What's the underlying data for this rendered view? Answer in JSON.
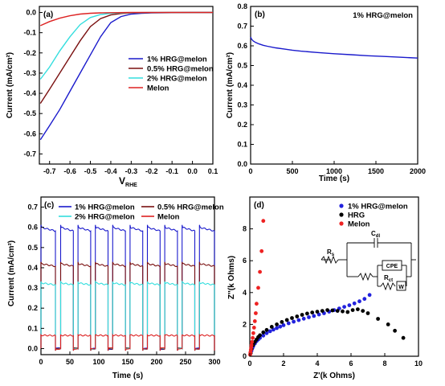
{
  "chart_data": [
    {
      "panel_label": "(a)",
      "type": "line",
      "xlabel": "V",
      "xlabel_sub": "RHE",
      "ylabel": "Current (mA/cm²)",
      "xlim": [
        -0.75,
        0.1
      ],
      "ylim": [
        -0.75,
        0.03
      ],
      "xticks": [
        "-0.7",
        "-0.6",
        "-0.5",
        "-0.4",
        "-0.3",
        "-0.2",
        "-0.1",
        "0.0",
        "0.1"
      ],
      "yticks": [
        "0.0",
        "-0.1",
        "-0.2",
        "-0.3",
        "-0.4",
        "-0.5",
        "-0.6",
        "-0.7"
      ],
      "legend_position": "center-right",
      "series": [
        {
          "name": "1% HRG@melon",
          "color": "#1a1acc",
          "x": [
            -0.745,
            -0.7,
            -0.65,
            -0.6,
            -0.55,
            -0.5,
            -0.45,
            -0.4,
            -0.35,
            -0.3,
            -0.25,
            -0.2,
            -0.1,
            0.0,
            0.1
          ],
          "y": [
            -0.63,
            -0.56,
            -0.48,
            -0.39,
            -0.3,
            -0.21,
            -0.12,
            -0.05,
            -0.02,
            -0.008,
            -0.004,
            -0.002,
            -0.001,
            0.0,
            0.0
          ]
        },
        {
          "name": "0.5% HRG@melon",
          "color": "#7a1010",
          "x": [
            -0.745,
            -0.7,
            -0.65,
            -0.6,
            -0.55,
            -0.5,
            -0.45,
            -0.4,
            -0.35,
            -0.3,
            -0.2,
            -0.1,
            0.0,
            0.1
          ],
          "y": [
            -0.45,
            -0.38,
            -0.3,
            -0.22,
            -0.14,
            -0.07,
            -0.03,
            -0.012,
            -0.005,
            -0.002,
            -0.001,
            0.0,
            0.0,
            0.0
          ]
        },
        {
          "name": "2% HRG@melon",
          "color": "#33dede",
          "x": [
            -0.745,
            -0.7,
            -0.65,
            -0.6,
            -0.55,
            -0.5,
            -0.45,
            -0.4,
            -0.35,
            -0.3,
            -0.2,
            -0.1,
            0.0,
            0.1
          ],
          "y": [
            -0.33,
            -0.27,
            -0.19,
            -0.12,
            -0.06,
            -0.025,
            -0.01,
            -0.004,
            -0.002,
            -0.001,
            0.0,
            0.0,
            0.0,
            0.0
          ]
        },
        {
          "name": "Melon",
          "color": "#dd2222",
          "x": [
            -0.745,
            -0.7,
            -0.65,
            -0.6,
            -0.55,
            -0.5,
            -0.45,
            -0.4,
            -0.3,
            -0.2,
            -0.1,
            0.0,
            0.1
          ],
          "y": [
            -0.065,
            -0.045,
            -0.028,
            -0.016,
            -0.008,
            -0.004,
            -0.002,
            -0.001,
            0.0,
            0.0,
            0.0,
            0.0,
            0.0
          ]
        }
      ]
    },
    {
      "panel_label": "(b)",
      "type": "line",
      "xlabel": "Time (s)",
      "ylabel": "Current (mA/cm²)",
      "xlim": [
        0,
        2000
      ],
      "ylim": [
        0.0,
        0.8
      ],
      "xticks": [
        "0",
        "500",
        "1000",
        "1500",
        "2000"
      ],
      "yticks": [
        "0.0",
        "0.1",
        "0.2",
        "0.3",
        "0.4",
        "0.5",
        "0.6",
        "0.7",
        "0.8"
      ],
      "legend_position": "top-right",
      "series": [
        {
          "name": "1% HRG@melon",
          "color": "#1a1acc",
          "x": [
            0,
            10,
            30,
            60,
            100,
            150,
            200,
            300,
            400,
            500,
            600,
            800,
            1000,
            1200,
            1400,
            1600,
            1800,
            2000
          ],
          "y": [
            0.645,
            0.635,
            0.625,
            0.617,
            0.61,
            0.603,
            0.598,
            0.59,
            0.584,
            0.578,
            0.573,
            0.566,
            0.56,
            0.555,
            0.55,
            0.546,
            0.542,
            0.538
          ]
        }
      ]
    },
    {
      "panel_label": "(c)",
      "type": "line",
      "xlabel": "Time (s)",
      "ylabel": "Current (mA/cm²)",
      "xlim": [
        0,
        300
      ],
      "ylim": [
        -0.03,
        0.75
      ],
      "xticks": [
        "0",
        "50",
        "100",
        "150",
        "200",
        "250",
        "300"
      ],
      "yticks": [
        "0.0",
        "0.1",
        "0.2",
        "0.3",
        "0.4",
        "0.5",
        "0.6",
        "0.7"
      ],
      "legend_position": "top",
      "light_on_intervals": [
        [
          0,
          25
        ],
        [
          34,
          56
        ],
        [
          64,
          86
        ],
        [
          94,
          116
        ],
        [
          124,
          146
        ],
        [
          154,
          176
        ],
        [
          184,
          206
        ],
        [
          214,
          236
        ],
        [
          244,
          266
        ],
        [
          274,
          300
        ]
      ],
      "series": [
        {
          "name": "1% HRG@melon",
          "color": "#1a1acc",
          "on_level": 0.6,
          "off_level": 0.0
        },
        {
          "name": "0.5% HRG@melon",
          "color": "#7a1010",
          "on_level": 0.42,
          "off_level": 0.0
        },
        {
          "name": "2% HRG@melon",
          "color": "#33dede",
          "on_level": 0.325,
          "off_level": 0.0
        },
        {
          "name": "Melon",
          "color": "#dd2222",
          "on_level": 0.066,
          "off_level": 0.0
        }
      ]
    },
    {
      "panel_label": "(d)",
      "type": "scatter",
      "xlabel": "Z'(k Ohms)",
      "ylabel": "Z''(k Ohms)",
      "xlim": [
        0,
        10
      ],
      "ylim": [
        0,
        10
      ],
      "xticks": [
        "0",
        "2",
        "4",
        "6",
        "8",
        "10"
      ],
      "yticks": [
        "0",
        "2",
        "4",
        "6",
        "8"
      ],
      "legend_position": "top-right",
      "series": [
        {
          "name": "1% HRG@melon",
          "color": "#2222dd",
          "x": [
            0.05,
            0.1,
            0.15,
            0.2,
            0.3,
            0.4,
            0.5,
            0.6,
            0.8,
            1.0,
            1.2,
            1.4,
            1.6,
            1.8,
            2.0,
            2.3,
            2.6,
            2.9,
            3.2,
            3.5,
            3.8,
            4.1,
            4.4,
            4.7,
            5.0,
            5.3,
            5.6,
            5.9,
            6.2,
            6.5,
            6.8,
            7.1
          ],
          "y": [
            0.2,
            0.35,
            0.5,
            0.62,
            0.8,
            0.95,
            1.05,
            1.15,
            1.3,
            1.45,
            1.57,
            1.67,
            1.77,
            1.86,
            1.95,
            2.07,
            2.17,
            2.27,
            2.36,
            2.45,
            2.53,
            2.62,
            2.7,
            2.8,
            2.9,
            3.0,
            3.1,
            3.2,
            3.32,
            3.45,
            3.6,
            3.85
          ]
        },
        {
          "name": "HRG",
          "color": "#000000",
          "x": [
            0.05,
            0.1,
            0.2,
            0.3,
            0.4,
            0.5,
            0.6,
            0.8,
            1.0,
            1.3,
            1.6,
            1.9,
            2.2,
            2.5,
            2.8,
            3.1,
            3.4,
            3.7,
            4.0,
            4.3,
            4.6,
            4.9,
            5.2,
            5.5,
            5.8,
            6.1,
            6.4,
            6.7,
            7.0,
            7.6,
            8.2,
            8.6,
            9.1
          ],
          "y": [
            0.2,
            0.45,
            0.7,
            0.9,
            1.05,
            1.2,
            1.32,
            1.5,
            1.65,
            1.85,
            2.0,
            2.15,
            2.28,
            2.4,
            2.5,
            2.6,
            2.68,
            2.75,
            2.8,
            2.85,
            2.9,
            2.88,
            2.85,
            2.82,
            2.78,
            2.9,
            2.95,
            2.85,
            2.7,
            2.35,
            2.0,
            1.6,
            1.15
          ]
        },
        {
          "name": "Melon",
          "color": "#ee2222",
          "x": [
            0.02,
            0.04,
            0.06,
            0.08,
            0.1,
            0.13,
            0.17,
            0.21,
            0.25,
            0.3,
            0.35,
            0.4,
            0.5,
            0.6,
            0.7,
            0.8
          ],
          "y": [
            0.1,
            0.25,
            0.4,
            0.55,
            0.7,
            0.9,
            1.15,
            1.45,
            1.8,
            2.2,
            2.7,
            3.3,
            4.3,
            5.3,
            6.6,
            8.5
          ]
        }
      ],
      "circuit_labels": {
        "rs": "R",
        "rs_sub": "s",
        "cdl": "C",
        "cdl_sub": "dl",
        "cpe": "CPE",
        "rct": "R",
        "rct_sub": "ct",
        "w": "W"
      }
    }
  ]
}
